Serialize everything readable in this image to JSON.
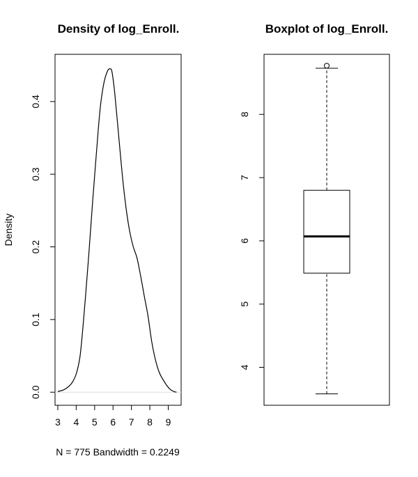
{
  "chart_data": [
    {
      "type": "line",
      "title": "Density of log_Enroll.",
      "xlabel": "N = 775   Bandwidth = 0.2249",
      "ylabel": "Density",
      "xlim": [
        2.85,
        9.7
      ],
      "ylim": [
        -0.018,
        0.465
      ],
      "x_ticks": [
        3,
        4,
        5,
        6,
        7,
        8,
        9
      ],
      "y_ticks": [
        0.0,
        0.1,
        0.2,
        0.3,
        0.4
      ],
      "y_tick_labels": [
        "0.0",
        "0.1",
        "0.2",
        "0.3",
        "0.4"
      ],
      "grid": false,
      "series": [
        {
          "x": [
            3.0,
            3.3,
            3.6,
            3.8,
            4.0,
            4.2,
            4.35,
            4.5,
            4.7,
            4.9,
            5.1,
            5.3,
            5.5,
            5.7,
            5.85,
            5.95,
            6.1,
            6.3,
            6.5,
            6.7,
            6.9,
            7.1,
            7.3,
            7.5,
            7.7,
            7.9,
            8.1,
            8.3,
            8.5,
            8.7,
            8.9,
            9.1,
            9.3,
            9.45
          ],
          "y": [
            0.001,
            0.003,
            0.008,
            0.014,
            0.025,
            0.048,
            0.085,
            0.13,
            0.195,
            0.265,
            0.33,
            0.39,
            0.425,
            0.442,
            0.445,
            0.44,
            0.41,
            0.355,
            0.3,
            0.255,
            0.222,
            0.2,
            0.185,
            0.16,
            0.132,
            0.105,
            0.07,
            0.045,
            0.028,
            0.018,
            0.01,
            0.004,
            0.001,
            0.0
          ]
        }
      ]
    },
    {
      "type": "box",
      "title": "Boxplot of log_Enroll.",
      "ylim": [
        3.4,
        8.95
      ],
      "y_ticks": [
        4,
        5,
        6,
        7,
        8
      ],
      "grid": false,
      "box": {
        "whisker_low": 3.58,
        "q1": 5.49,
        "median": 6.07,
        "q3": 6.8,
        "whisker_high": 8.73,
        "outliers": [
          8.77
        ]
      }
    }
  ]
}
